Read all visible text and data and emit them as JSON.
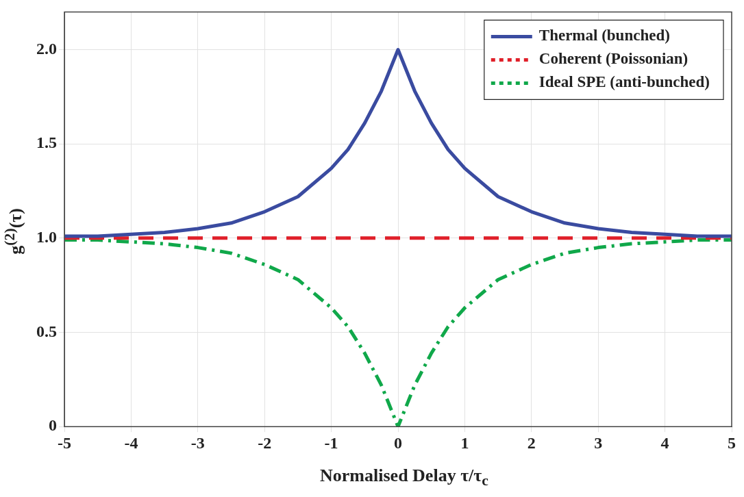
{
  "chart_data": {
    "type": "line",
    "xlabel": "Normalised Delay τ/τ$_{c}$",
    "ylabel": "g$^{(2)}$(τ)",
    "x": [
      -5,
      -4.5,
      -4,
      -3.5,
      -3,
      -2.5,
      -2,
      -1.5,
      -1,
      -0.75,
      -0.5,
      -0.25,
      0,
      0.25,
      0.5,
      0.75,
      1,
      1.5,
      2,
      2.5,
      3,
      3.5,
      4,
      4.5,
      5
    ],
    "series": [
      {
        "name": "Thermal (bunched)",
        "color": "#3a4ba0",
        "line_style": "solid",
        "values": [
          1.01,
          1.01,
          1.02,
          1.03,
          1.05,
          1.08,
          1.14,
          1.22,
          1.37,
          1.47,
          1.61,
          1.78,
          2.0,
          1.78,
          1.61,
          1.47,
          1.37,
          1.22,
          1.14,
          1.08,
          1.05,
          1.03,
          1.02,
          1.01,
          1.01
        ]
      },
      {
        "name": "Coherent (Poissonian)",
        "color": "#e0202a",
        "line_style": "dashed",
        "values": [
          1,
          1,
          1,
          1,
          1,
          1,
          1,
          1,
          1,
          1,
          1,
          1,
          1,
          1,
          1,
          1,
          1,
          1,
          1,
          1,
          1,
          1,
          1,
          1,
          1
        ]
      },
      {
        "name": "Ideal SPE (anti-bunched)",
        "color": "#10a84a",
        "line_style": "dotted",
        "values": [
          0.99,
          0.99,
          0.98,
          0.97,
          0.95,
          0.92,
          0.86,
          0.78,
          0.63,
          0.53,
          0.39,
          0.22,
          0,
          0.22,
          0.39,
          0.53,
          0.63,
          0.78,
          0.86,
          0.92,
          0.95,
          0.97,
          0.98,
          0.99,
          0.99
        ]
      }
    ],
    "xlim": [
      -5,
      5
    ],
    "xticks": [
      -5,
      -4,
      -3,
      -2,
      -1,
      0,
      1,
      2,
      3,
      4,
      5
    ],
    "ylim": [
      0,
      2.2
    ],
    "yticks": [
      0,
      {
        "value": 0.5,
        "label": "0.5"
      },
      {
        "value": 1,
        "label": "1.0"
      },
      {
        "value": 1.5,
        "label": "1.5"
      },
      {
        "value": 2,
        "label": "2.0"
      }
    ],
    "grid": true,
    "legend": "top right",
    "marker": "none"
  }
}
